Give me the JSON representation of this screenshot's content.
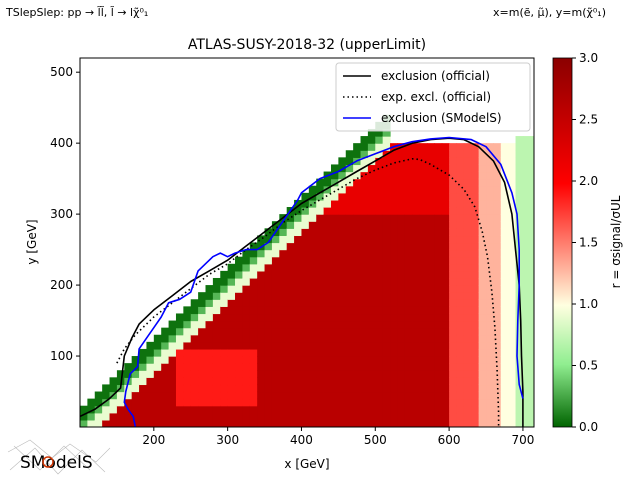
{
  "header": {
    "left_text": "TSlepSlep: pp → l̃l̃, l̃ → lχ̃⁰₁",
    "right_text": "x=m(ẽ, μ̃), y=m(χ̃⁰₁)"
  },
  "logo": {
    "text": "SModelS"
  },
  "chart_data": {
    "type": "heatmap",
    "title": "ATLAS-SUSY-2018-32 (upperLimit)",
    "xlabel": "x [GeV]",
    "ylabel": "y [GeV]",
    "xlim": [
      100,
      715
    ],
    "ylim": [
      0,
      520
    ],
    "xticks": [
      200,
      300,
      400,
      500,
      600,
      700
    ],
    "yticks": [
      100,
      200,
      300,
      400,
      500
    ],
    "colorbar": {
      "label": "r = σsignal/σUL",
      "range": [
        0.0,
        3.0
      ],
      "ticks": [
        "0.0",
        "0.5",
        "1.0",
        "1.5",
        "2.0",
        "2.5",
        "3.0"
      ],
      "colors": [
        "#006400",
        "#90ee90",
        "#ffffe0",
        "#ff0000",
        "#8b0000"
      ]
    },
    "legend": {
      "position": "top-right",
      "entries": [
        {
          "label": "exclusion (official)",
          "color": "#000000",
          "style": "solid"
        },
        {
          "label": "exp. excl. (official)",
          "color": "#000000",
          "style": "dotted"
        },
        {
          "label": "exclusion (SModelS)",
          "color": "#0000ff",
          "style": "solid"
        }
      ]
    },
    "series": [
      {
        "name": "exclusion (official)",
        "points": [
          [
            100,
            15
          ],
          [
            120,
            25
          ],
          [
            140,
            40
          ],
          [
            155,
            55
          ],
          [
            160,
            100
          ],
          [
            170,
            125
          ],
          [
            180,
            145
          ],
          [
            200,
            165
          ],
          [
            225,
            185
          ],
          [
            250,
            205
          ],
          [
            275,
            220
          ],
          [
            300,
            235
          ],
          [
            325,
            255
          ],
          [
            350,
            275
          ],
          [
            375,
            295
          ],
          [
            400,
            315
          ],
          [
            425,
            330
          ],
          [
            450,
            345
          ],
          [
            475,
            360
          ],
          [
            500,
            375
          ],
          [
            525,
            390
          ],
          [
            550,
            400
          ],
          [
            575,
            405
          ],
          [
            600,
            407
          ],
          [
            620,
            405
          ],
          [
            640,
            395
          ],
          [
            660,
            375
          ],
          [
            675,
            345
          ],
          [
            685,
            300
          ],
          [
            690,
            250
          ],
          [
            695,
            200
          ],
          [
            697,
            150
          ],
          [
            698,
            100
          ],
          [
            700,
            50
          ],
          [
            700,
            0
          ]
        ]
      },
      {
        "name": "exp. excl. (official)",
        "points": [
          [
            150,
            90
          ],
          [
            160,
            110
          ],
          [
            175,
            130
          ],
          [
            200,
            155
          ],
          [
            225,
            175
          ],
          [
            250,
            195
          ],
          [
            275,
            215
          ],
          [
            300,
            230
          ],
          [
            325,
            250
          ],
          [
            350,
            268
          ],
          [
            375,
            288
          ],
          [
            400,
            305
          ],
          [
            425,
            320
          ],
          [
            450,
            335
          ],
          [
            475,
            350
          ],
          [
            500,
            362
          ],
          [
            525,
            372
          ],
          [
            550,
            378
          ],
          [
            560,
            377
          ],
          [
            575,
            370
          ],
          [
            600,
            355
          ],
          [
            620,
            335
          ],
          [
            635,
            310
          ],
          [
            645,
            275
          ],
          [
            652,
            240
          ],
          [
            658,
            190
          ],
          [
            662,
            140
          ],
          [
            665,
            80
          ],
          [
            667,
            20
          ],
          [
            667,
            0
          ]
        ]
      },
      {
        "name": "exclusion (SModelS)",
        "points": [
          [
            175,
            0
          ],
          [
            172,
            15
          ],
          [
            165,
            25
          ],
          [
            160,
            35
          ],
          [
            162,
            50
          ],
          [
            168,
            75
          ],
          [
            178,
            85
          ],
          [
            180,
            110
          ],
          [
            190,
            125
          ],
          [
            200,
            140
          ],
          [
            210,
            155
          ],
          [
            220,
            175
          ],
          [
            235,
            180
          ],
          [
            250,
            190
          ],
          [
            260,
            220
          ],
          [
            280,
            240
          ],
          [
            290,
            245
          ],
          [
            300,
            240
          ],
          [
            310,
            245
          ],
          [
            325,
            250
          ],
          [
            340,
            250
          ],
          [
            355,
            260
          ],
          [
            365,
            275
          ],
          [
            375,
            290
          ],
          [
            385,
            305
          ],
          [
            395,
            320
          ],
          [
            400,
            330
          ],
          [
            425,
            350
          ],
          [
            450,
            360
          ],
          [
            475,
            375
          ],
          [
            500,
            385
          ],
          [
            525,
            395
          ],
          [
            550,
            402
          ],
          [
            575,
            406
          ],
          [
            600,
            408
          ],
          [
            630,
            405
          ],
          [
            650,
            395
          ],
          [
            670,
            370
          ],
          [
            685,
            330
          ],
          [
            692,
            300
          ],
          [
            695,
            250
          ],
          [
            695,
            200
          ],
          [
            693,
            150
          ],
          [
            692,
            100
          ],
          [
            695,
            60
          ],
          [
            700,
            40
          ]
        ]
      }
    ]
  }
}
